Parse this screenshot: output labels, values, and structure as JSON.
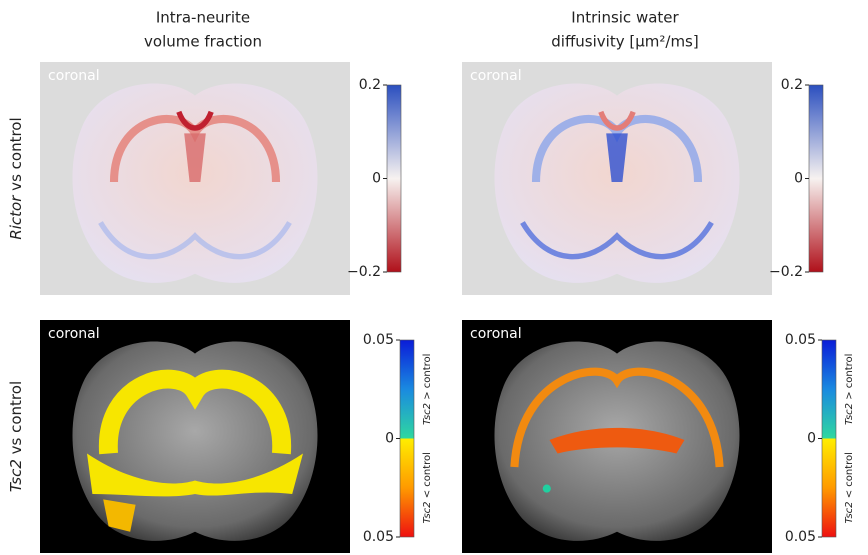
{
  "columns": [
    {
      "title": [
        "Intra-neurite",
        "volume fraction"
      ]
    },
    {
      "title": [
        "Intrinsic water",
        "diffusivity [μm²/ms]"
      ]
    }
  ],
  "rows": [
    {
      "label": {
        "gene": "Rictor",
        "text": "vs control"
      },
      "panels": [
        {
          "view": "coronal",
          "colorbar": {
            "ticks": [
              "0.2",
              "0",
              "−0.2"
            ]
          }
        },
        {
          "view": "coronal",
          "colorbar": {
            "ticks": [
              "0.2",
              "0",
              "−0.2"
            ]
          }
        }
      ]
    },
    {
      "label": {
        "gene": "Tsc2",
        "text": "vs control"
      },
      "panels": [
        {
          "view": "coronal",
          "colorbar": {
            "ticks": [
              "0.05",
              "0",
              "0.05"
            ],
            "upper": {
              "gene": "Tsc2",
              "text": "> control"
            },
            "lower": {
              "gene": "Tsc2",
              "text": "< control"
            }
          }
        },
        {
          "view": "coronal",
          "colorbar": {
            "ticks": [
              "0.05",
              "0",
              "0.05"
            ],
            "upper": {
              "gene": "Tsc2",
              "text": "> control"
            },
            "lower": {
              "gene": "Tsc2",
              "text": "< control"
            }
          }
        }
      ]
    }
  ]
}
